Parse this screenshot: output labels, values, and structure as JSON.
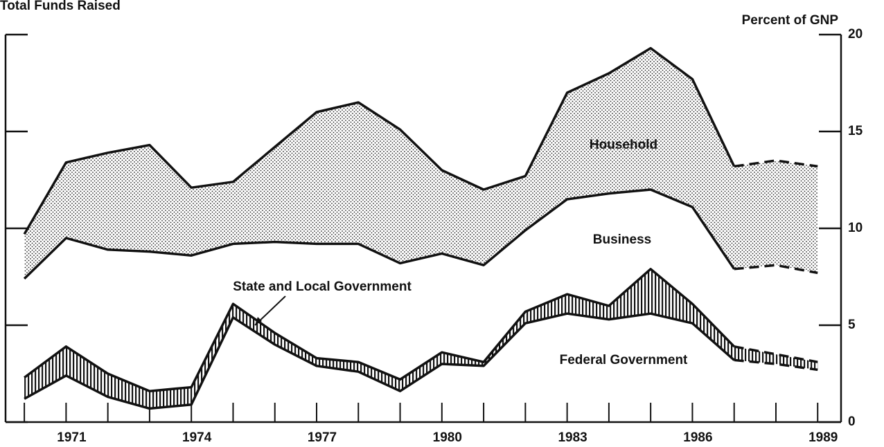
{
  "chart_data": {
    "type": "stacked-area",
    "title": "Total Funds Raised",
    "y_axis_label": "Percent of GNP",
    "x": [
      1970,
      1971,
      1972,
      1973,
      1974,
      1975,
      1976,
      1977,
      1978,
      1979,
      1980,
      1981,
      1982,
      1983,
      1984,
      1985,
      1986,
      1987,
      1988,
      1989
    ],
    "projected_from": 1987,
    "series": [
      {
        "name": "Federal Government",
        "color": "#ffffff",
        "pattern": "none",
        "values": [
          1.2,
          2.4,
          1.3,
          0.7,
          0.9,
          5.4,
          4.0,
          2.9,
          2.6,
          1.6,
          3.0,
          2.9,
          5.1,
          5.6,
          5.3,
          5.6,
          5.1,
          3.2,
          3.0,
          2.7
        ]
      },
      {
        "name": "State and Local Government",
        "color": "#ffffff",
        "pattern": "stripes",
        "values": [
          1.1,
          1.5,
          1.2,
          0.9,
          0.9,
          0.7,
          0.6,
          0.4,
          0.5,
          0.6,
          0.6,
          0.2,
          0.6,
          1.0,
          0.7,
          2.3,
          1.0,
          0.7,
          0.5,
          0.4
        ]
      },
      {
        "name": "Business",
        "color": "#ffffff",
        "pattern": "none",
        "values": [
          5.1,
          5.6,
          6.4,
          7.2,
          6.8,
          3.1,
          4.7,
          5.9,
          6.1,
          6.0,
          5.1,
          5.0,
          4.2,
          4.9,
          5.8,
          4.1,
          5.0,
          4.0,
          4.6,
          4.6
        ]
      },
      {
        "name": "Household",
        "color": "#ffffff",
        "pattern": "dots",
        "values": [
          2.3,
          3.9,
          5.0,
          5.5,
          3.5,
          3.2,
          4.9,
          6.8,
          7.3,
          6.9,
          4.3,
          3.9,
          2.8,
          5.5,
          6.2,
          7.3,
          6.6,
          5.3,
          5.4,
          5.5
        ]
      }
    ],
    "xlim": [
      1969.55,
      1989.56
    ],
    "xticks": [
      1971,
      1974,
      1977,
      1980,
      1983,
      1986,
      1989
    ],
    "ylim": [
      0,
      20
    ],
    "yticks": [
      0,
      5,
      10,
      15,
      20
    ],
    "grid": false
  }
}
